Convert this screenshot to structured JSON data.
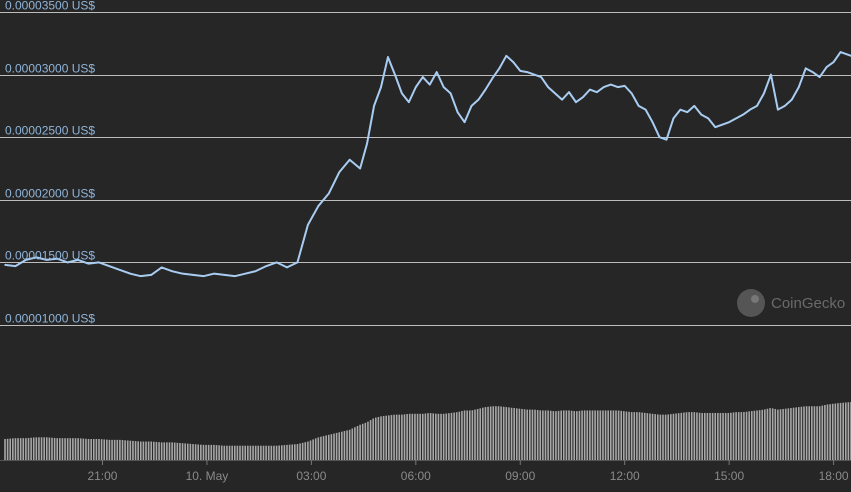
{
  "watermark": {
    "text": "CoinGecko",
    "icon": "coingecko-logo-icon"
  },
  "colors": {
    "background": "#262626",
    "grid": "#bdbdbd",
    "price_line": "#a9cdf2",
    "volume_bar": "#a8a8a8",
    "y_label": "#8fb4d9",
    "x_label": "#8a8a8a"
  },
  "chart_data": [
    {
      "type": "line",
      "title": "",
      "xlabel": "",
      "ylabel": "",
      "y_tick_labels": [
        "0.00003500 US$",
        "0.00003000 US$",
        "0.00002500 US$",
        "0.00002000 US$",
        "0.00001500 US$",
        "0.00001000 US$"
      ],
      "y_ticks": [
        3.5e-05,
        3e-05,
        2.5e-05,
        2e-05,
        1.5e-05,
        1e-05
      ],
      "ylim": [
        1e-05,
        3.5e-05
      ],
      "x_tick_labels": [
        "21:00",
        "10. May",
        "03:00",
        "06:00",
        "09:00",
        "12:00",
        "15:00",
        "18:00"
      ],
      "x_ticks": [
        3,
        6,
        9,
        12,
        15,
        18,
        21,
        24
      ],
      "xlim": [
        0.2,
        24.5
      ],
      "grid": true,
      "legend": "none",
      "series": [
        {
          "x": [
            0.2,
            0.5,
            0.8,
            1.1,
            1.4,
            1.7,
            2.0,
            2.3,
            2.6,
            2.9,
            3.2,
            3.5,
            3.8,
            4.1,
            4.4,
            4.7,
            5.0,
            5.3,
            5.6,
            5.9,
            6.2,
            6.5,
            6.8,
            7.1,
            7.4,
            7.7,
            8.0,
            8.3,
            8.6,
            8.9,
            9.2,
            9.5,
            9.8,
            10.1,
            10.4,
            10.6,
            10.8,
            11.0,
            11.2,
            11.4,
            11.6,
            11.8,
            12.0,
            12.2,
            12.4,
            12.6,
            12.8,
            13.0,
            13.2,
            13.4,
            13.6,
            13.8,
            14.0,
            14.2,
            14.4,
            14.6,
            14.8,
            15.0,
            15.2,
            15.4,
            15.6,
            15.8,
            16.0,
            16.2,
            16.4,
            16.6,
            16.8,
            17.0,
            17.2,
            17.4,
            17.6,
            17.8,
            18.0,
            18.2,
            18.4,
            18.6,
            18.8,
            19.0,
            19.2,
            19.4,
            19.6,
            19.8,
            20.0,
            20.2,
            20.4,
            20.6,
            20.8,
            21.0,
            21.2,
            21.4,
            21.6,
            21.8,
            22.0,
            22.2,
            22.4,
            22.6,
            22.8,
            23.0,
            23.2,
            23.4,
            23.6,
            23.8,
            24.0,
            24.2,
            24.5
          ],
          "y": [
            1.48e-05,
            1.47e-05,
            1.52e-05,
            1.54e-05,
            1.52e-05,
            1.53e-05,
            1.5e-05,
            1.52e-05,
            1.49e-05,
            1.5e-05,
            1.47e-05,
            1.44e-05,
            1.41e-05,
            1.39e-05,
            1.4e-05,
            1.46e-05,
            1.43e-05,
            1.41e-05,
            1.4e-05,
            1.39e-05,
            1.41e-05,
            1.4e-05,
            1.39e-05,
            1.41e-05,
            1.43e-05,
            1.47e-05,
            1.5e-05,
            1.46e-05,
            1.5e-05,
            1.8e-05,
            1.95e-05,
            2.05e-05,
            2.22e-05,
            2.32e-05,
            2.25e-05,
            2.45e-05,
            2.75e-05,
            2.9e-05,
            3.14e-05,
            3e-05,
            2.85e-05,
            2.78e-05,
            2.9e-05,
            2.98e-05,
            2.92e-05,
            3.02e-05,
            2.9e-05,
            2.85e-05,
            2.7e-05,
            2.62e-05,
            2.75e-05,
            2.8e-05,
            2.88e-05,
            2.97e-05,
            3.05e-05,
            3.15e-05,
            3.1e-05,
            3.03e-05,
            3.02e-05,
            3e-05,
            2.98e-05,
            2.9e-05,
            2.85e-05,
            2.8e-05,
            2.86e-05,
            2.78e-05,
            2.82e-05,
            2.88e-05,
            2.86e-05,
            2.9e-05,
            2.92e-05,
            2.9e-05,
            2.91e-05,
            2.85e-05,
            2.75e-05,
            2.72e-05,
            2.62e-05,
            2.5e-05,
            2.48e-05,
            2.65e-05,
            2.72e-05,
            2.7e-05,
            2.75e-05,
            2.68e-05,
            2.65e-05,
            2.58e-05,
            2.6e-05,
            2.62e-05,
            2.65e-05,
            2.68e-05,
            2.72e-05,
            2.75e-05,
            2.85e-05,
            3e-05,
            2.72e-05,
            2.75e-05,
            2.8e-05,
            2.9e-05,
            3.05e-05,
            3.02e-05,
            2.98e-05,
            3.06e-05,
            3.1e-05,
            3.18e-05,
            3.15e-05
          ]
        }
      ]
    },
    {
      "type": "bar",
      "title": "",
      "xlabel": "",
      "ylabel": "",
      "xlim": [
        0.2,
        24.5
      ],
      "ylim": [
        0,
        100
      ],
      "series": [
        {
          "x": [
            0.2,
            0.5,
            0.8,
            1.1,
            1.4,
            1.7,
            2.0,
            2.3,
            2.6,
            2.9,
            3.2,
            3.5,
            3.8,
            4.1,
            4.4,
            4.7,
            5.0,
            5.3,
            5.6,
            5.9,
            6.2,
            6.5,
            6.8,
            7.1,
            7.4,
            7.7,
            8.0,
            8.3,
            8.6,
            8.9,
            9.2,
            9.5,
            9.8,
            10.1,
            10.4,
            10.6,
            10.8,
            11.0,
            11.2,
            11.4,
            11.6,
            11.8,
            12.0,
            12.2,
            12.4,
            12.6,
            12.8,
            13.0,
            13.2,
            13.4,
            13.6,
            13.8,
            14.0,
            14.2,
            14.4,
            14.6,
            14.8,
            15.0,
            15.2,
            15.4,
            15.6,
            15.8,
            16.0,
            16.2,
            16.4,
            16.6,
            16.8,
            17.0,
            17.2,
            17.4,
            17.6,
            17.8,
            18.0,
            18.2,
            18.4,
            18.6,
            18.8,
            19.0,
            19.2,
            19.4,
            19.6,
            19.8,
            20.0,
            20.2,
            20.4,
            20.6,
            20.8,
            21.0,
            21.2,
            21.4,
            21.6,
            21.8,
            22.0,
            22.2,
            22.4,
            22.6,
            22.8,
            23.0,
            23.2,
            23.4,
            23.6,
            23.8,
            24.0,
            24.2,
            24.5
          ],
          "values": [
            25,
            26,
            26,
            27,
            27,
            26,
            26,
            26,
            25,
            25,
            24,
            24,
            23,
            22,
            22,
            21,
            21,
            20,
            19,
            18,
            18,
            17,
            17,
            17,
            17,
            17,
            17,
            18,
            19,
            22,
            27,
            30,
            33,
            36,
            42,
            45,
            50,
            52,
            53,
            54,
            54,
            55,
            55,
            55,
            56,
            55,
            55,
            56,
            57,
            59,
            59,
            61,
            63,
            64,
            64,
            63,
            62,
            61,
            60,
            60,
            59,
            59,
            58,
            59,
            59,
            58,
            59,
            59,
            59,
            59,
            59,
            59,
            58,
            57,
            57,
            56,
            55,
            54,
            54,
            55,
            56,
            57,
            57,
            56,
            56,
            56,
            56,
            56,
            57,
            57,
            58,
            59,
            60,
            62,
            60,
            61,
            62,
            63,
            64,
            64,
            64,
            66,
            67,
            68,
            69
          ]
        }
      ]
    }
  ]
}
